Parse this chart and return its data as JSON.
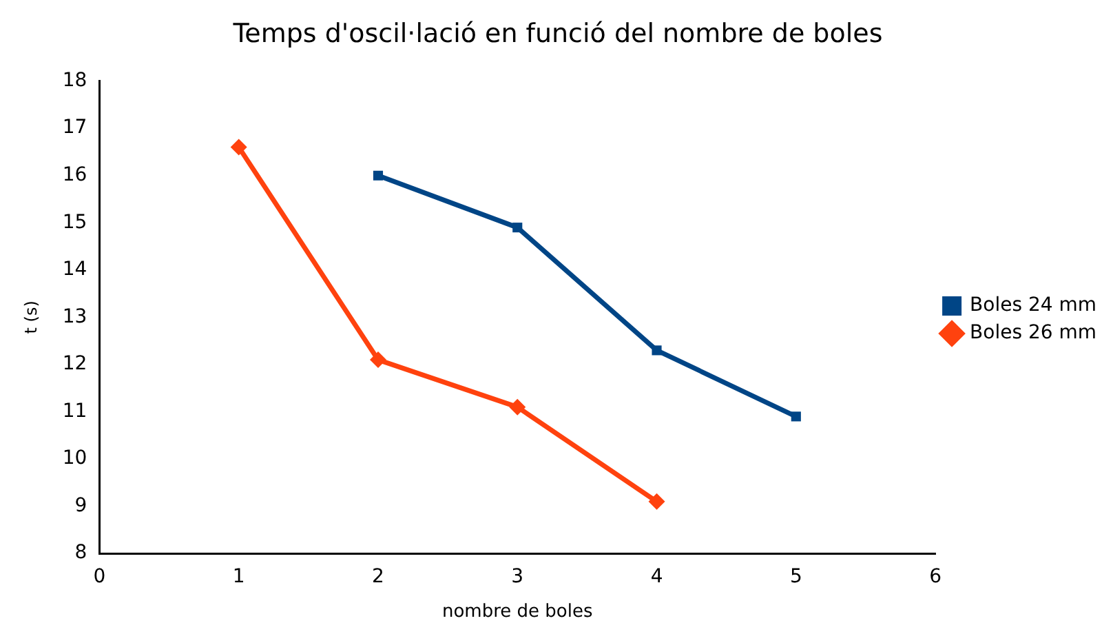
{
  "chart_data": {
    "type": "line",
    "title": "Temps d'oscil·lació en funció del nombre de boles",
    "xlabel": "nombre de boles",
    "ylabel": "t (s)",
    "xlim": [
      0,
      6
    ],
    "xticks": [
      0,
      1,
      2,
      3,
      4,
      5,
      6
    ],
    "ylim": [
      8,
      18
    ],
    "yticks": [
      8,
      9,
      10,
      11,
      12,
      13,
      14,
      15,
      16,
      17,
      18
    ],
    "grid": false,
    "legend": "right",
    "series": [
      {
        "name": "Boles 24 mm",
        "color": "#004586",
        "marker": "square",
        "x": [
          2,
          3,
          4,
          5
        ],
        "values": [
          16.0,
          14.9,
          12.3,
          10.9
        ]
      },
      {
        "name": "Boles 26 mm",
        "color": "#ff420e",
        "marker": "diamond",
        "x": [
          1,
          2,
          3,
          4
        ],
        "values": [
          16.6,
          12.1,
          11.1,
          9.1
        ]
      }
    ]
  }
}
